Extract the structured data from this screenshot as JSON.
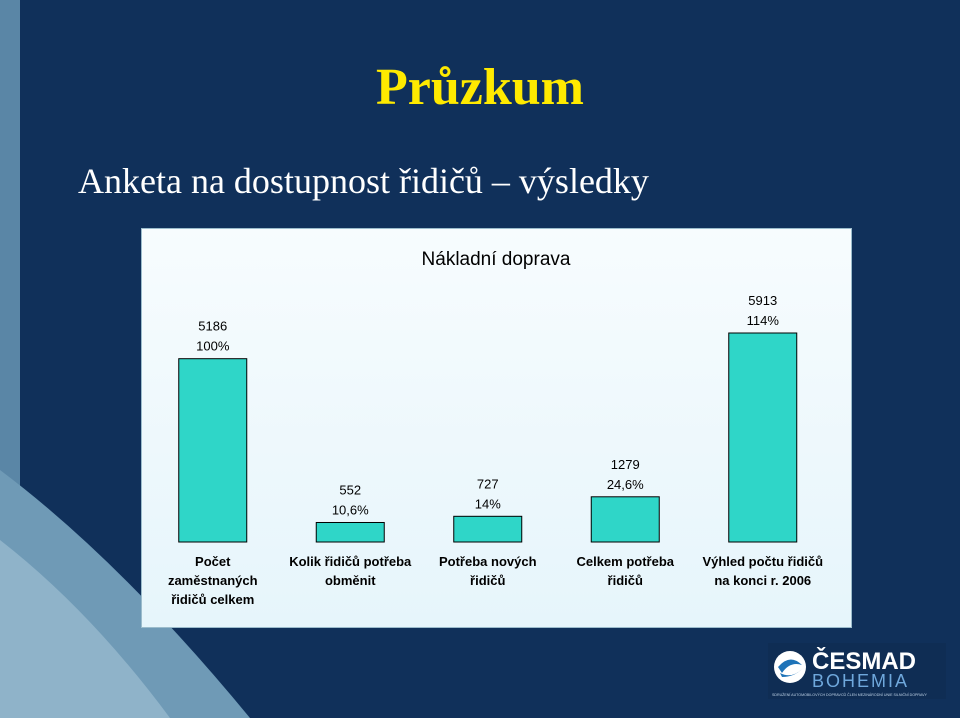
{
  "slide": {
    "title": "Průzkum",
    "subtitle": "Anketa na dostupnost řidičů – výsledky"
  },
  "colors": {
    "background": "#10305a",
    "title": "#ffea00",
    "bar": "#2fd6c8"
  },
  "chart_data": {
    "type": "bar",
    "title": "Nákladní doprava",
    "categories": [
      [
        "Počet",
        "zaměstnaných",
        "řidičů celkem"
      ],
      [
        "Kolik řidičů potřeba",
        "obměnit"
      ],
      [
        "Potřeba nových",
        "řidičů"
      ],
      [
        "Celkem potřeba",
        "řidičů"
      ],
      [
        "Výhled počtu řidičů",
        "na konci r. 2006"
      ]
    ],
    "values": [
      5186,
      552,
      727,
      1279,
      5913
    ],
    "data_labels": [
      [
        "5186",
        "100%"
      ],
      [
        "552",
        "10,6%"
      ],
      [
        "727",
        "14%"
      ],
      [
        "1279",
        "24,6%"
      ],
      [
        "5913",
        "114%"
      ]
    ],
    "ylim": [
      0,
      5913
    ],
    "grid": false,
    "legend": "none"
  },
  "logo": {
    "name": "ČESMAD",
    "sub": "BOHEMIA",
    "tagline": "SDRUŽENÍ AUTOMOBILOVÝCH DOPRAVCŮ ČLEN MEZINÁRODNÍ UNIE SILNIČNÍ DOPRAVY"
  }
}
